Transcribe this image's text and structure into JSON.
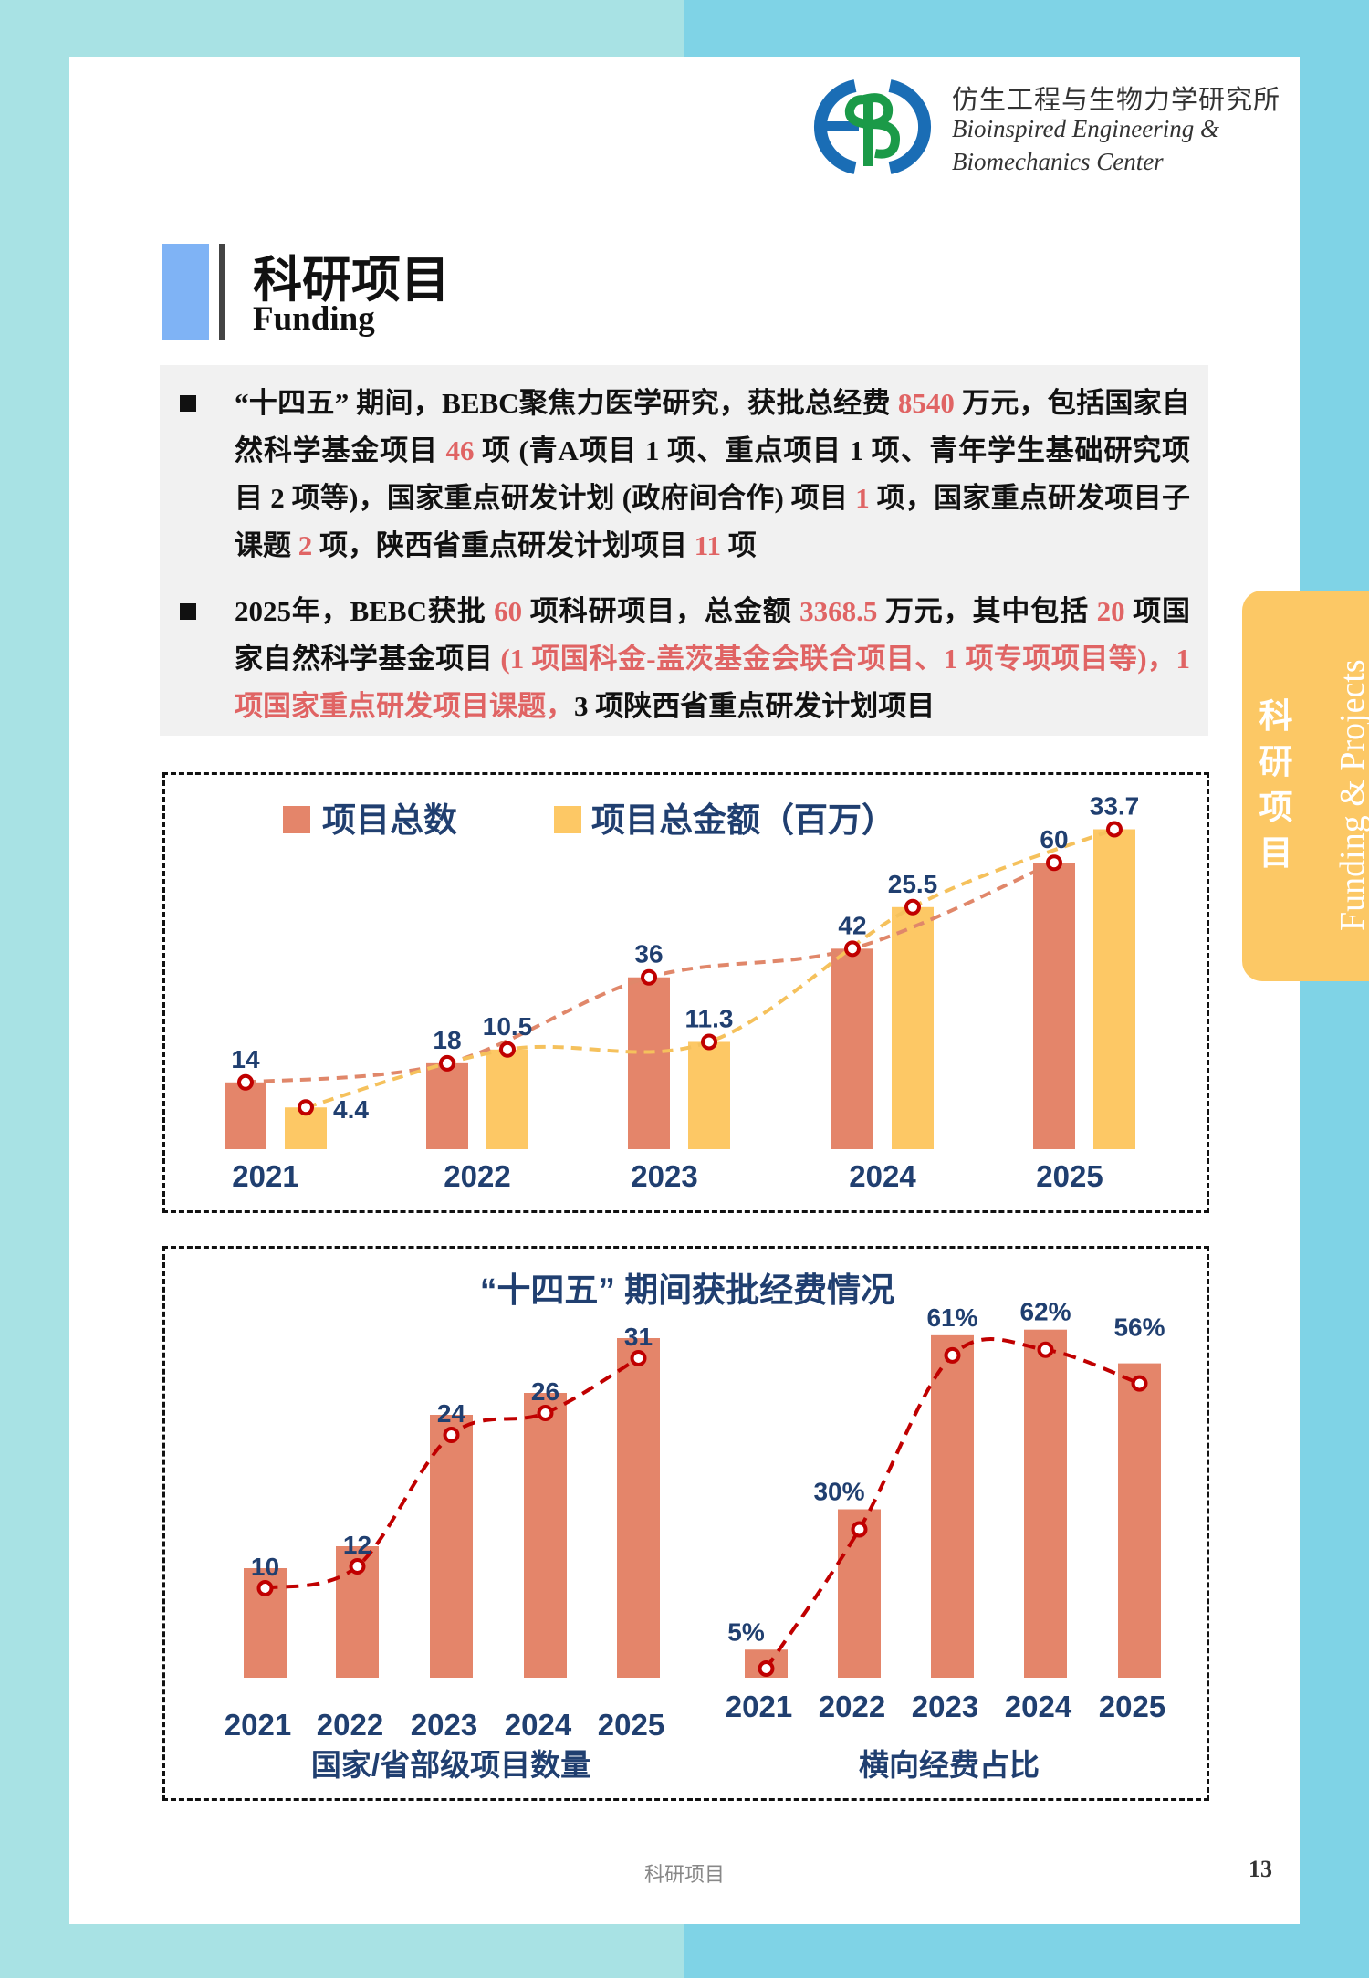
{
  "header": {
    "logo_text": "EBB",
    "org_cn": "仿生工程与生物力学研究所",
    "org_en_line1": "Bioinspired Engineering &",
    "org_en_line2": "Biomechanics Center"
  },
  "title": {
    "cn": "科研项目",
    "en": "Funding"
  },
  "summary": [
    [
      {
        "t": "“十四五” 期间，BEBC聚焦力医学研究，获批总经费 "
      },
      {
        "t": "8540",
        "red": true
      },
      {
        "t": " 万元，包括国家自然科学基金项目 "
      },
      {
        "t": "46",
        "red": true
      },
      {
        "t": " 项 (青A项目 1 项、重点项目 1 项、青年学生基础研究项目 2 项等)，国家重点研发计划 (政府间合作) 项目 "
      },
      {
        "t": "1",
        "red": true
      },
      {
        "t": " 项，国家重点研发项目子课题 "
      },
      {
        "t": "2",
        "red": true
      },
      {
        "t": " 项，陕西省重点研发计划项目 "
      },
      {
        "t": "11",
        "red": true
      },
      {
        "t": " 项"
      }
    ],
    [
      {
        "t": "2025年，BEBC获批 "
      },
      {
        "t": "60",
        "red": true
      },
      {
        "t": " 项科研项目，总金额 "
      },
      {
        "t": "3368.5",
        "red": true
      },
      {
        "t": " 万元，其中包括 "
      },
      {
        "t": "20",
        "red": true
      },
      {
        "t": " 项国家自然科学基金项目 "
      },
      {
        "t": "(1 项国科金-盖茨基金会联合项目、1 项专项项目等)，1 项国家重点研发项目课题，",
        "red": true
      },
      {
        "t": "3 项陕西省重点研发计划项目"
      }
    ]
  ],
  "side_tab": {
    "cn": "科研项目",
    "en": "Funding & Projects"
  },
  "colors": {
    "bar_orange": "#e4856a",
    "bar_yellow": "#fdc865",
    "label_blue": "#203f70",
    "marker_red": "#c00000",
    "text_red": "#e06464"
  },
  "chart_data": [
    {
      "type": "bar",
      "title": "",
      "categories": [
        "2021",
        "2022",
        "2023",
        "2024",
        "2025"
      ],
      "series": [
        {
          "name": "项目总数",
          "values": [
            14,
            18,
            36,
            42,
            60
          ],
          "labels": [
            "14",
            "18",
            "36",
            "42",
            "60"
          ]
        },
        {
          "name": "项目总金额（百万）",
          "values": [
            4.4,
            10.5,
            11.3,
            25.5,
            33.7
          ],
          "labels": [
            "4.4",
            "10.5",
            "11.3",
            "25.5",
            "33.7"
          ]
        }
      ],
      "legend": "top-left",
      "grid": false
    },
    {
      "type": "bar",
      "title": "“十四五” 期间获批经费情况",
      "panels": [
        {
          "xlabel": "国家/省部级项目数量",
          "categories": [
            "2021",
            "2022",
            "2023",
            "2024",
            "2025"
          ],
          "values": [
            10,
            12,
            24,
            26,
            31
          ],
          "labels": [
            "10",
            "12",
            "24",
            "26",
            "31"
          ]
        },
        {
          "xlabel": "横向经费占比",
          "categories": [
            "2021",
            "2022",
            "2023",
            "2024",
            "2025"
          ],
          "values": [
            5,
            30,
            61,
            62,
            56
          ],
          "labels": [
            "5%",
            "30%",
            "61%",
            "62%",
            "56%"
          ],
          "unit": "%"
        }
      ]
    }
  ],
  "footer": {
    "section": "科研项目",
    "page": "13"
  }
}
